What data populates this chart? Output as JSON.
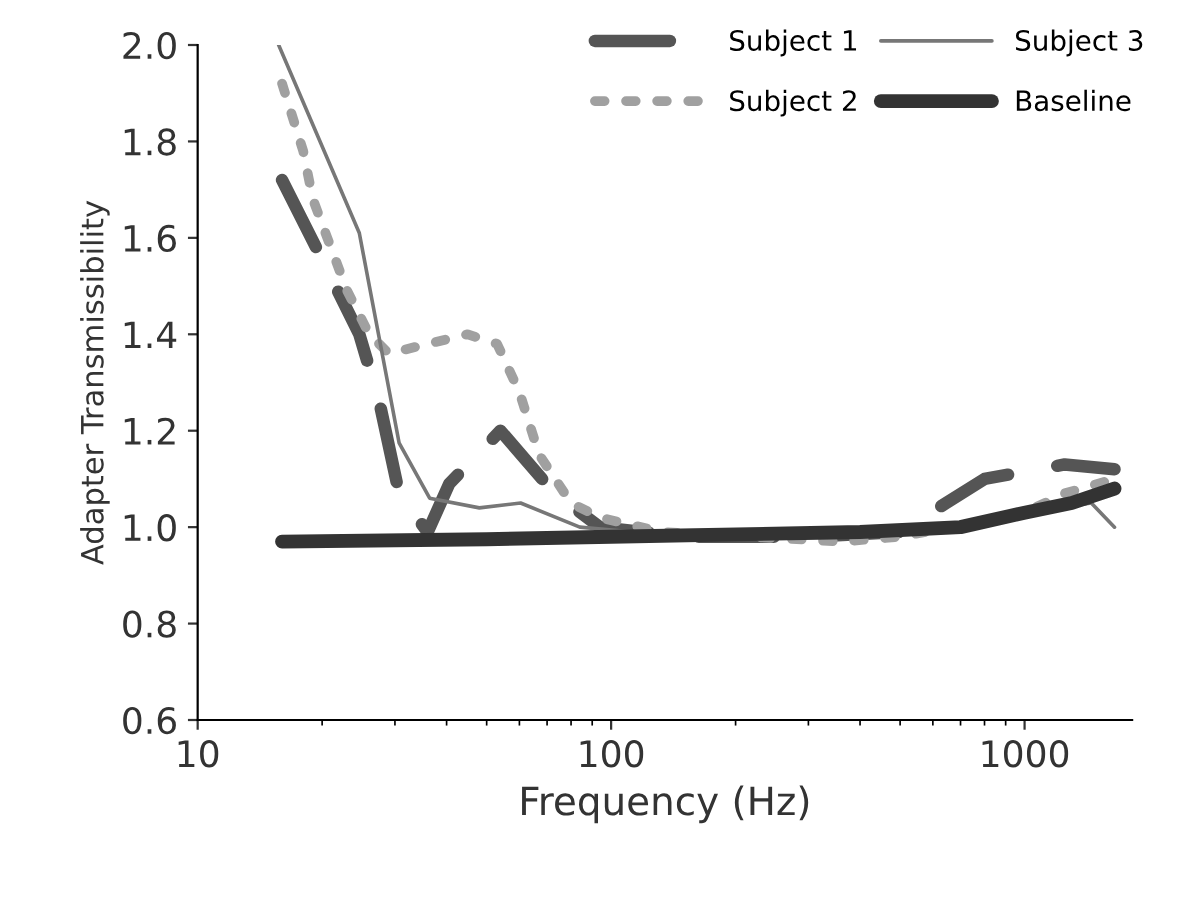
{
  "chart_data": {
    "type": "line",
    "xlabel": "Frequency (Hz)",
    "ylabel": "Adapter Transmissibility",
    "log": "x",
    "xlim": [
      10,
      1820
    ],
    "xticks": [
      10,
      100,
      1000
    ],
    "ylim": [
      0.6,
      2.0
    ],
    "yticks": [
      {
        "value": 0.6,
        "label": "0.6"
      },
      {
        "value": 0.8,
        "label": "0.8"
      },
      {
        "value": 1.0,
        "label": "1.0"
      },
      {
        "value": 1.2,
        "label": "1.2"
      },
      {
        "value": 1.4,
        "label": "1.4"
      },
      {
        "value": 1.6,
        "label": "1.6"
      },
      {
        "value": 1.8,
        "label": "1.8"
      },
      {
        "value": 2.0,
        "label": "2.0"
      }
    ],
    "grid": false,
    "legend": "top right",
    "marker": "none",
    "series": [
      {
        "name": "Subject 1",
        "color": "#555555",
        "line_style": "dashed",
        "x": [
          16,
          20.7,
          24.6,
          27.5,
          30.7,
          36,
          40.6,
          54,
          73,
          94,
          150,
          300,
          500,
          800,
          1250,
          1650
        ],
        "values": [
          1.72,
          1.53,
          1.4,
          1.26,
          1.07,
          0.99,
          1.09,
          1.2,
          1.07,
          1.0,
          0.98,
          0.98,
          0.99,
          1.1,
          1.13,
          1.12
        ]
      },
      {
        "name": "Subject 2",
        "color": "#a0a0a0",
        "line_style": "dotted",
        "x": [
          16,
          18,
          19,
          21,
          23,
          26,
          29,
          36,
          45,
          53,
          60,
          67,
          80,
          94,
          132,
          360,
          500,
          1000,
          1250,
          1650
        ],
        "values": [
          1.92,
          1.78,
          1.68,
          1.58,
          1.49,
          1.4,
          1.36,
          1.38,
          1.4,
          1.38,
          1.28,
          1.15,
          1.05,
          1.02,
          0.99,
          0.97,
          0.98,
          1.03,
          1.07,
          1.1
        ]
      },
      {
        "name": "Subject 3",
        "color": "#777777",
        "line_style": "solid",
        "x": [
          15.7,
          24.6,
          30.7,
          36.4,
          48,
          60.4,
          84,
          150,
          400,
          700,
          1000,
          1450,
          1650
        ],
        "values": [
          2.0,
          1.61,
          1.175,
          1.06,
          1.04,
          1.05,
          1.0,
          0.98,
          0.99,
          1.0,
          1.03,
          1.05,
          1.0
        ]
      },
      {
        "name": "Baseline",
        "color": "#333333",
        "line_style": "solid",
        "x": [
          16,
          50,
          100,
          400,
          700,
          1000,
          1300,
          1650
        ],
        "values": [
          0.97,
          0.975,
          0.98,
          0.99,
          1.0,
          1.03,
          1.05,
          1.08
        ]
      }
    ]
  }
}
